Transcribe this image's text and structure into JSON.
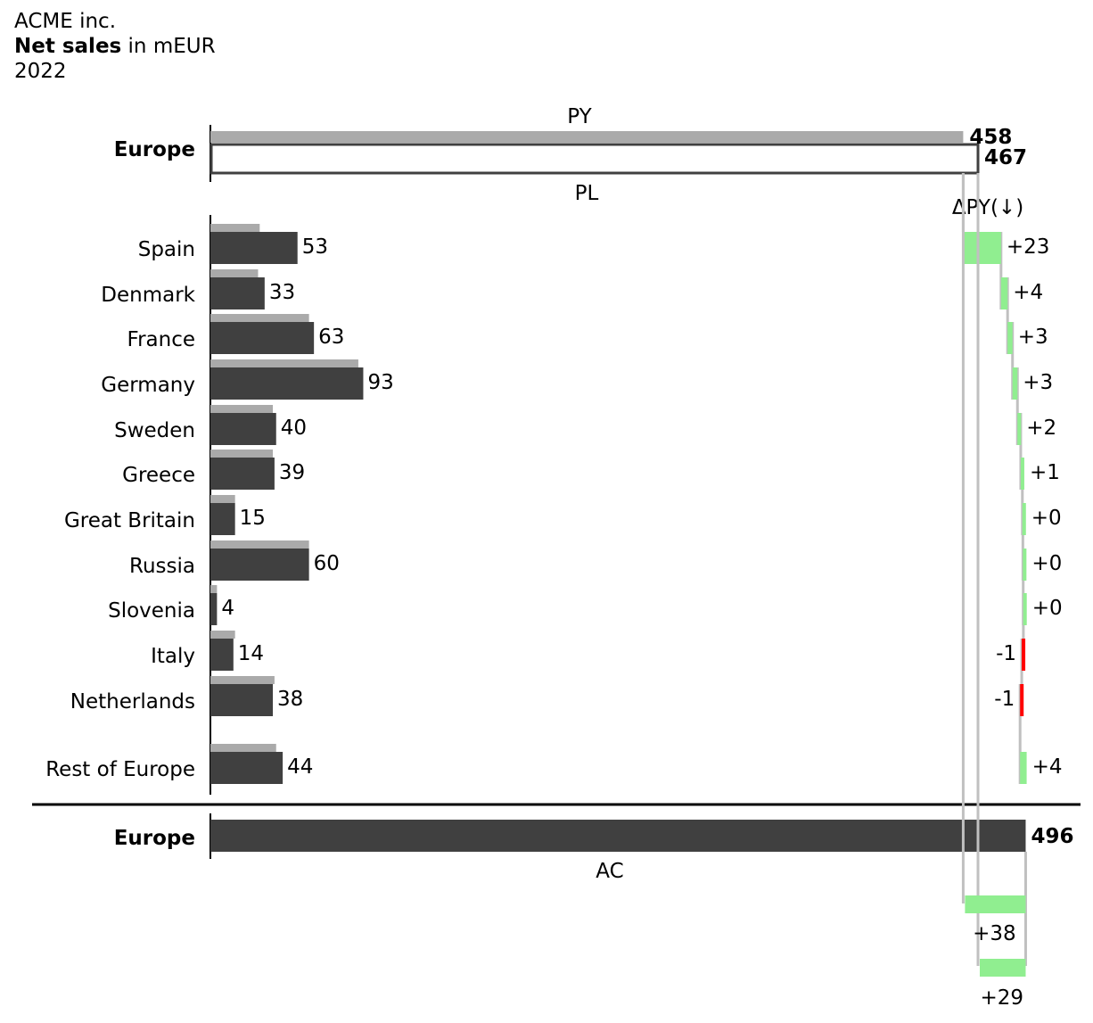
{
  "header": {
    "company": "ACME inc.",
    "measure": "Net sales",
    "unit": "in mEUR",
    "year": "2022"
  },
  "colors": {
    "py_bar": "#aaaaaa",
    "ac_bar": "#404040",
    "pl_outline": "#404040",
    "positive": "#90ee90",
    "negative": "#ff0000",
    "connector": "#c0c0c0",
    "axis": "#000000"
  },
  "chart_data": {
    "type": "bar",
    "orientation": "horizontal",
    "total_label": "Europe",
    "scenario_labels": {
      "py": "PY",
      "pl": "PL",
      "ac": "AC"
    },
    "delta_header": "ΔPY(↓)",
    "totals": {
      "py": 458,
      "py_label": "458",
      "pl": 467,
      "pl_label": "467",
      "ac": 496,
      "ac_label": "496"
    },
    "categories": [
      "Spain",
      "Denmark",
      "France",
      "Germany",
      "Sweden",
      "Greece",
      "Great Britain",
      "Russia",
      "Slovenia",
      "Italy",
      "Netherlands",
      "Rest of Europe"
    ],
    "series": [
      {
        "name": "PY",
        "values": [
          30,
          29,
          60,
          90,
          38,
          38,
          15,
          60,
          4,
          15,
          39,
          40
        ]
      },
      {
        "name": "AC",
        "values": [
          53,
          33,
          63,
          93,
          40,
          39,
          15,
          60,
          4,
          14,
          38,
          44
        ]
      }
    ],
    "value_labels": [
      "53",
      "33",
      "63",
      "93",
      "40",
      "39",
      "15",
      "60",
      "4",
      "14",
      "38",
      "44"
    ],
    "deltas": [
      23,
      4,
      3,
      3,
      2,
      1,
      0.3,
      0.2,
      0.1,
      -1,
      -1,
      4
    ],
    "delta_labels": [
      "+23",
      "+4",
      "+3",
      "+3",
      "+2",
      "+1",
      "+0",
      "+0",
      "+0",
      "-1",
      "-1",
      "+4"
    ],
    "total_deltas": [
      {
        "from": "py",
        "to": "ac",
        "value": 38,
        "label": "+38"
      },
      {
        "from": "pl",
        "to": "ac",
        "value": 29,
        "label": "+29"
      }
    ]
  }
}
